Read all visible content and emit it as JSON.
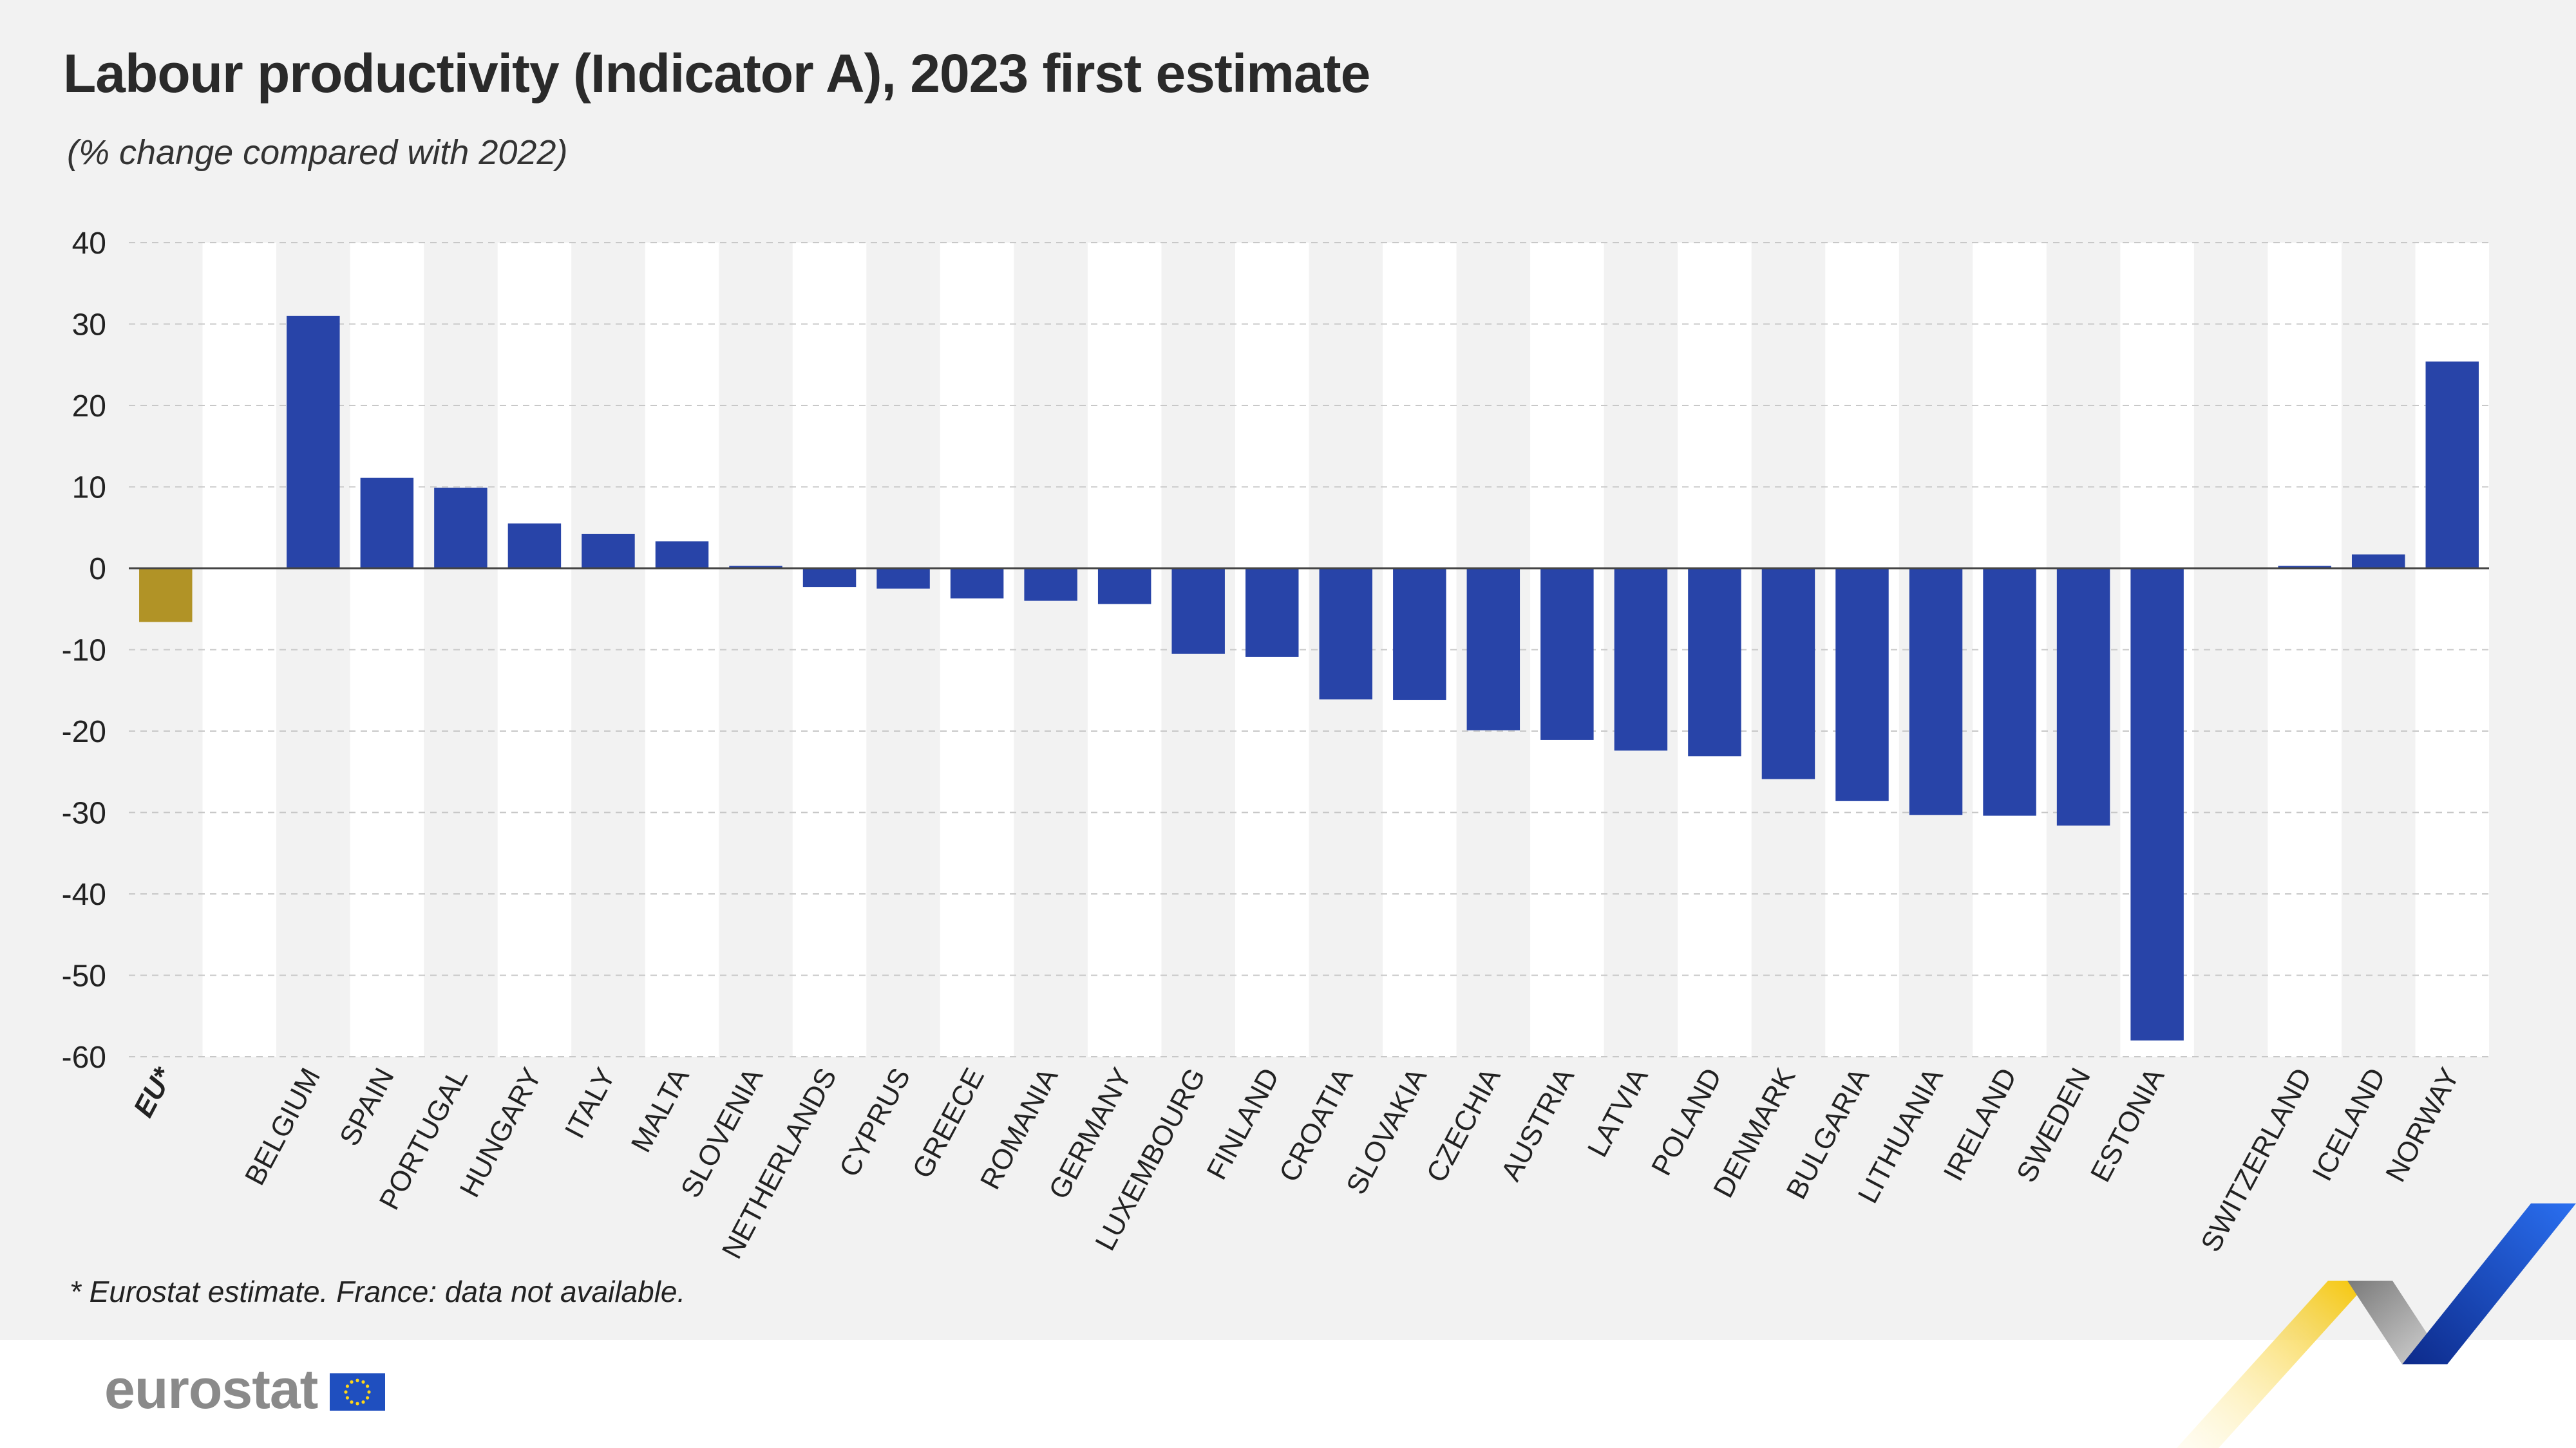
{
  "title": "Labour productivity (Indicator A), 2023 first estimate",
  "subtitle": "(% change compared with 2022)",
  "footnote": "* Eurostat estimate.  France: data not available.",
  "logo": {
    "text": "eurostat",
    "flag_icon": "eu-flag-icon"
  },
  "colors": {
    "eu_bar": "#b19326",
    "country_bar": "#2844a8",
    "stripe": "#ffffff",
    "background": "#f2f2f2"
  },
  "chart_data": {
    "type": "bar",
    "title": "Labour productivity (Indicator A), 2023 first estimate",
    "subtitle": "(% change compared with 2022)",
    "ylim": [
      -60,
      40
    ],
    "yticks": [
      40,
      30,
      20,
      10,
      0,
      -10,
      -20,
      -30,
      -40,
      -50,
      -60
    ],
    "grid": "horizontal dashed",
    "categories": [
      "EU*",
      "",
      "BELGIUM",
      "SPAIN",
      "PORTUGAL",
      "HUNGARY",
      "ITALY",
      "MALTA",
      "SLOVENIA",
      "NETHERLANDS",
      "CYPRUS",
      "GREECE",
      "ROMANIA",
      "GERMANY",
      "LUXEMBOURG",
      "FINLAND",
      "CROATIA",
      "SLOVAKIA",
      "CZECHIA",
      "AUSTRIA",
      "LATVIA",
      "POLAND",
      "DENMARK",
      "BULGARIA",
      "LITHUANIA",
      "IRELAND",
      "SWEDEN",
      "ESTONIA",
      "",
      "SWITZERLAND",
      "ICELAND",
      "NORWAY"
    ],
    "values": [
      -6.6,
      null,
      31.0,
      11.1,
      9.9,
      5.5,
      4.2,
      3.3,
      0.3,
      -2.3,
      -2.5,
      -3.7,
      -4.0,
      -4.4,
      -10.5,
      -10.9,
      -16.1,
      -16.2,
      -19.9,
      -21.1,
      -22.4,
      -23.1,
      -25.9,
      -28.6,
      -30.3,
      -30.4,
      -31.6,
      -58.0,
      null,
      0.3,
      1.7,
      25.4
    ],
    "highlight": [
      "EU*"
    ]
  }
}
